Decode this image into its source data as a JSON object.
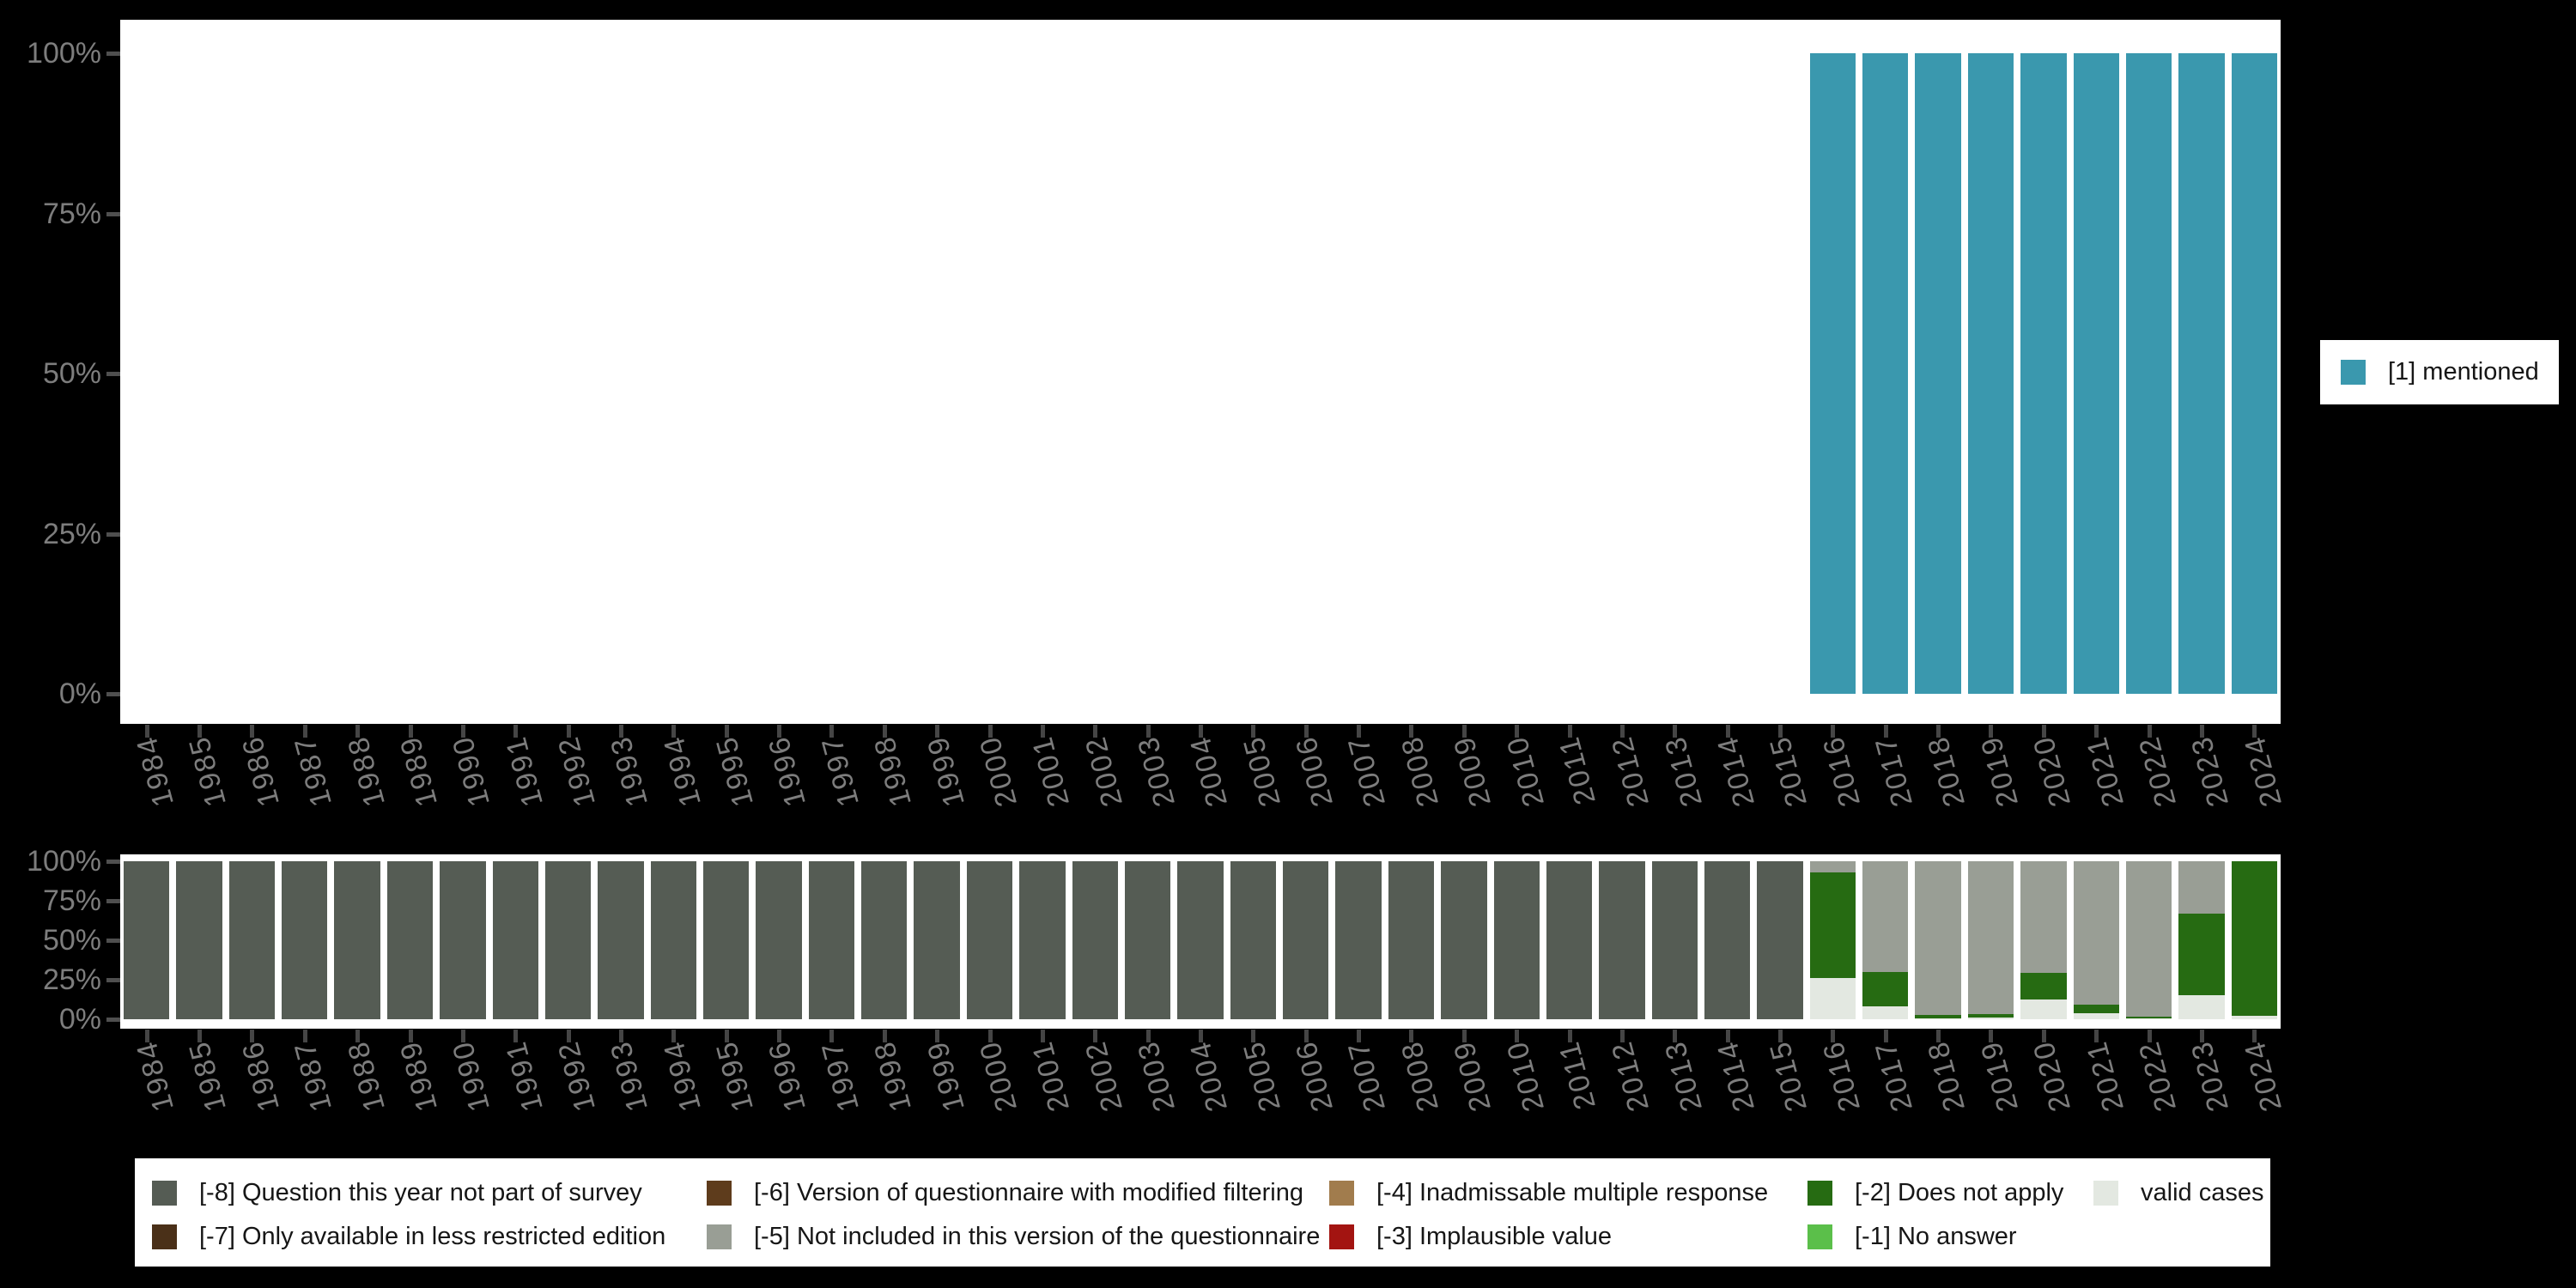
{
  "colors": {
    "background": "#000000",
    "plot_background": "#ffffff",
    "axis_label": "#7d7d7d",
    "axis_tick": "#4f4f4f",
    "legend_text": "#161616",
    "mentioned": "#3a98ae"
  },
  "axis": {
    "yticks": [
      "0%",
      "25%",
      "50%",
      "75%",
      "100%"
    ]
  },
  "top_legend": {
    "label": "[1] mentioned",
    "color": "#3a98ae"
  },
  "missing_legend": {
    "items": [
      {
        "code": "-8",
        "label": "[-8] Question this year not part of survey",
        "color": "#555c54"
      },
      {
        "code": "-7",
        "label": "[-7] Only available in less restricted edition",
        "color": "#4a3018"
      },
      {
        "code": "-6",
        "label": "[-6] Version of questionnaire with modified filtering",
        "color": "#5e3c1c"
      },
      {
        "code": "-5",
        "label": "[-5] Not included in this version of the questionnaire",
        "color": "#999e95"
      },
      {
        "code": "-4",
        "label": "[-4] Inadmissable multiple response",
        "color": "#a17c4d"
      },
      {
        "code": "-3",
        "label": "[-3] Implausible value",
        "color": "#a31411"
      },
      {
        "code": "-2",
        "label": "[-2] Does not apply",
        "color": "#266b12"
      },
      {
        "code": "-1",
        "label": "[-1] No answer",
        "color": "#5bbf4a"
      },
      {
        "code": "valid",
        "label": "valid cases",
        "color": "#e3e8e1"
      }
    ]
  },
  "chart_data": [
    {
      "type": "bar",
      "title": "",
      "categories": [
        "1984",
        "1985",
        "1986",
        "1987",
        "1988",
        "1989",
        "1990",
        "1991",
        "1992",
        "1993",
        "1994",
        "1995",
        "1996",
        "1997",
        "1998",
        "1999",
        "2000",
        "2001",
        "2002",
        "2003",
        "2004",
        "2005",
        "2006",
        "2007",
        "2008",
        "2009",
        "2010",
        "2011",
        "2012",
        "2013",
        "2014",
        "2015",
        "2016",
        "2017",
        "2018",
        "2019",
        "2020",
        "2021",
        "2022",
        "2023",
        "2024"
      ],
      "series": [
        {
          "name": "[1] mentioned",
          "code": "mentioned",
          "color": "#3a98ae",
          "values": [
            0,
            0,
            0,
            0,
            0,
            0,
            0,
            0,
            0,
            0,
            0,
            0,
            0,
            0,
            0,
            0,
            0,
            0,
            0,
            0,
            0,
            0,
            0,
            0,
            0,
            0,
            0,
            0,
            0,
            0,
            0,
            0,
            100,
            100,
            100,
            100,
            100,
            100,
            100,
            100,
            100
          ]
        }
      ],
      "xlabel": "",
      "ylabel": "",
      "ylim": [
        0,
        100
      ],
      "yticks": [
        "0%",
        "25%",
        "50%",
        "75%",
        "100%"
      ],
      "grid": false,
      "legend_position": "right"
    },
    {
      "type": "stacked-bar",
      "title": "",
      "categories": [
        "1984",
        "1985",
        "1986",
        "1987",
        "1988",
        "1989",
        "1990",
        "1991",
        "1992",
        "1993",
        "1994",
        "1995",
        "1996",
        "1997",
        "1998",
        "1999",
        "2000",
        "2001",
        "2002",
        "2003",
        "2004",
        "2005",
        "2006",
        "2007",
        "2008",
        "2009",
        "2010",
        "2011",
        "2012",
        "2013",
        "2014",
        "2015",
        "2016",
        "2017",
        "2018",
        "2019",
        "2020",
        "2021",
        "2022",
        "2023",
        "2024"
      ],
      "stack_order_bottom_to_top": [
        "valid",
        "-1",
        "-2",
        "-3",
        "-4",
        "-5",
        "-6",
        "-7",
        "-8"
      ],
      "series": [
        {
          "name": "valid cases",
          "code": "valid",
          "color": "#e3e8e1",
          "values": [
            0,
            0,
            0,
            0,
            0,
            0,
            0,
            0,
            0,
            0,
            0,
            0,
            0,
            0,
            0,
            0,
            0,
            0,
            0,
            0,
            0,
            0,
            0,
            0,
            0,
            0,
            0,
            0,
            0,
            0,
            0,
            0,
            26,
            8,
            0.5,
            1,
            12.5,
            4,
            0.5,
            15,
            2
          ]
        },
        {
          "name": "[-2] Does not apply",
          "code": "-2",
          "color": "#266b12",
          "values": [
            0,
            0,
            0,
            0,
            0,
            0,
            0,
            0,
            0,
            0,
            0,
            0,
            0,
            0,
            0,
            0,
            0,
            0,
            0,
            0,
            0,
            0,
            0,
            0,
            0,
            0,
            0,
            0,
            0,
            0,
            0,
            0,
            67,
            22,
            2,
            2,
            17,
            5,
            1,
            52,
            98
          ]
        },
        {
          "name": "[-5] Not included in this version of the questionnaire",
          "code": "-5",
          "color": "#999e95",
          "values": [
            0,
            0,
            0,
            0,
            0,
            0,
            0,
            0,
            0,
            0,
            0,
            0,
            0,
            0,
            0,
            0,
            0,
            0,
            0,
            0,
            0,
            0,
            0,
            0,
            0,
            0,
            0,
            0,
            0,
            0,
            0,
            0,
            7,
            70,
            97.5,
            97,
            70.5,
            91,
            98.5,
            33,
            0
          ]
        },
        {
          "name": "[-8] Question this year not part of survey",
          "code": "-8",
          "color": "#555c54",
          "values": [
            100,
            100,
            100,
            100,
            100,
            100,
            100,
            100,
            100,
            100,
            100,
            100,
            100,
            100,
            100,
            100,
            100,
            100,
            100,
            100,
            100,
            100,
            100,
            100,
            100,
            100,
            100,
            100,
            100,
            100,
            100,
            100,
            0,
            0,
            0,
            0,
            0,
            0,
            0,
            0,
            0
          ]
        }
      ],
      "xlabel": "",
      "ylabel": "",
      "ylim": [
        0,
        100
      ],
      "yticks": [
        "0%",
        "25%",
        "50%",
        "75%",
        "100%"
      ],
      "grid": false,
      "legend_position": "bottom"
    }
  ]
}
